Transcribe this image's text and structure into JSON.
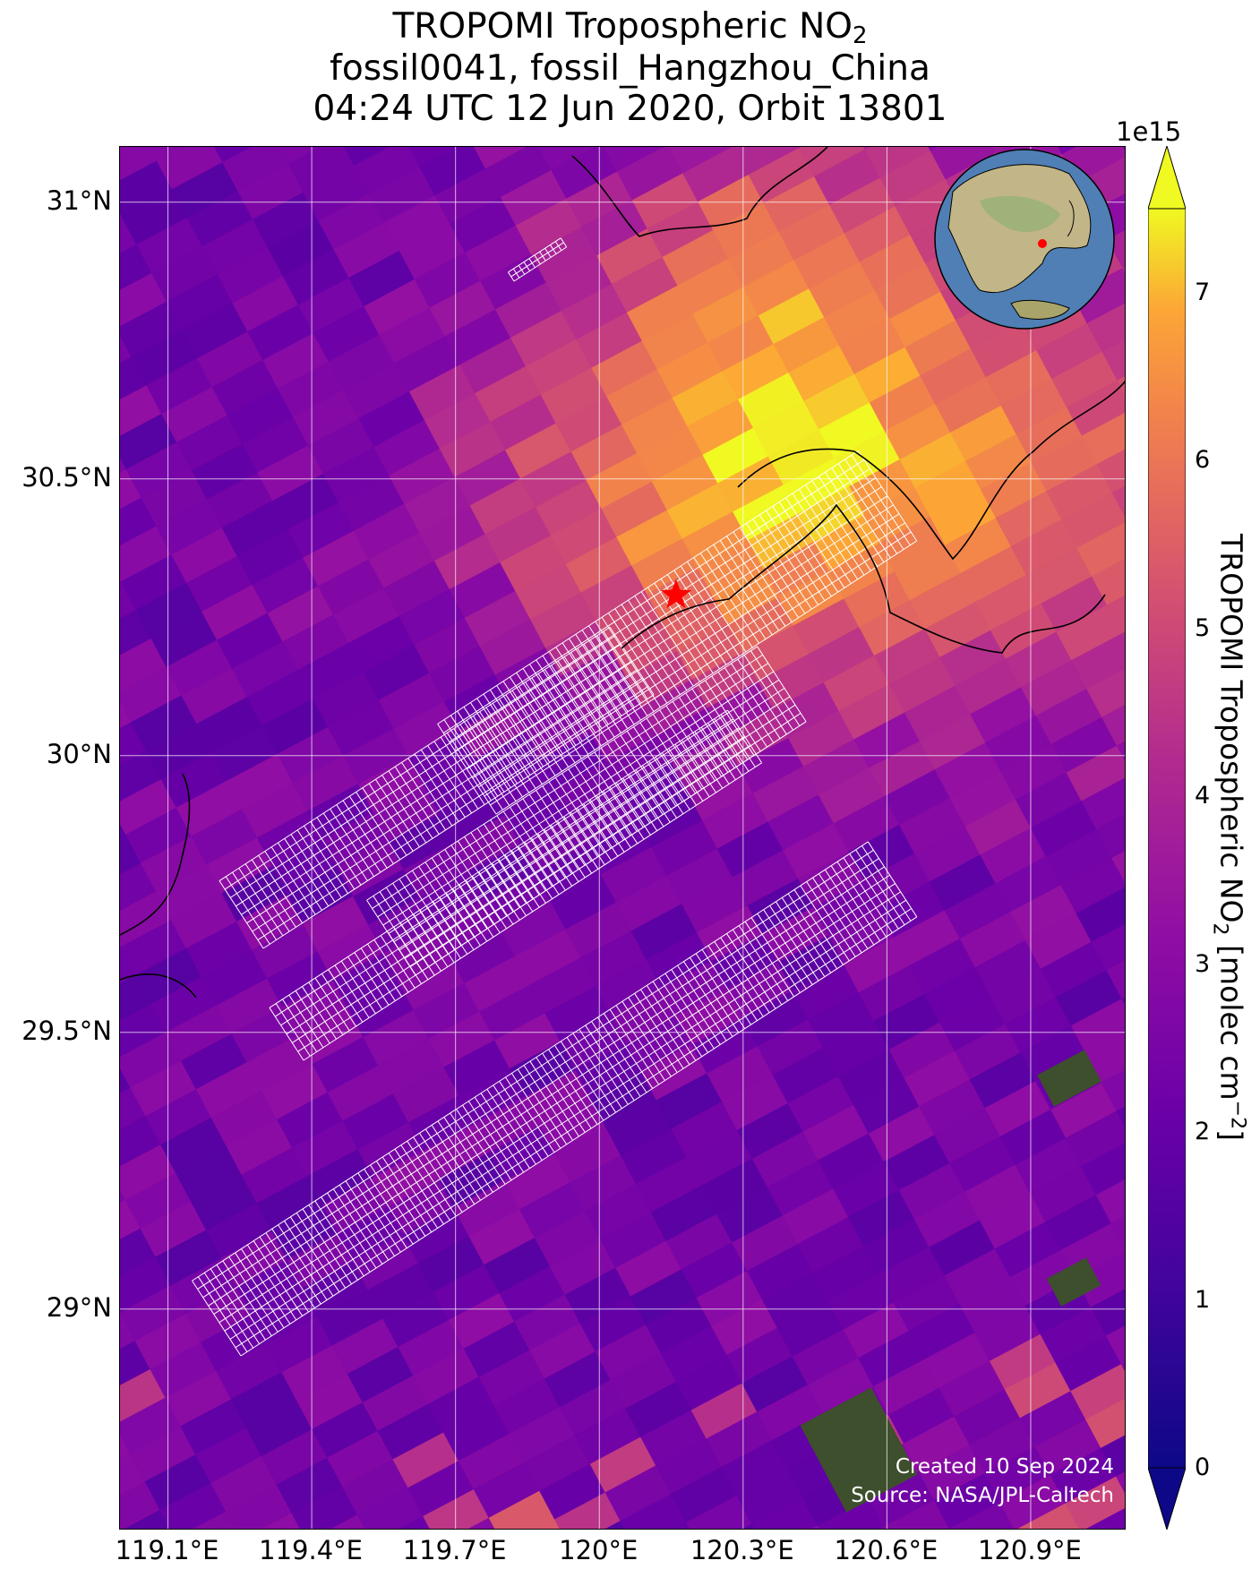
{
  "title": {
    "line1_text": "TROPOMI Tropospheric NO",
    "line1_sub": "2",
    "line2": "fossil0041, fossil_Hangzhou_China",
    "line3": "04:24 UTC 12 Jun 2020, Orbit 13801"
  },
  "map": {
    "lon_range": [
      119.0,
      121.1
    ],
    "lat_range": [
      28.6,
      31.1
    ],
    "gridlines": true,
    "lat_labels": [
      "31°N",
      "30.5°N",
      "30°N",
      "29.5°N",
      "29°N"
    ],
    "lat_values": [
      31.0,
      30.5,
      30.0,
      29.5,
      29.0
    ],
    "lon_labels": [
      "119.1°E",
      "119.4°E",
      "119.7°E",
      "120°E",
      "120.3°E",
      "120.6°E",
      "120.9°E"
    ],
    "lon_values": [
      119.1,
      119.4,
      119.7,
      120.0,
      120.3,
      120.6,
      120.9
    ],
    "site_marker": {
      "lon": 120.16,
      "lat": 30.29,
      "color": "#ff0000",
      "symbol": "star"
    },
    "inset": {
      "type": "globe",
      "marker_color": "#ff0000"
    }
  },
  "colorbar": {
    "colormap": "plasma",
    "range": [
      0,
      7.5
    ],
    "exponent_label": "1e15",
    "ticks": [
      "0",
      "1",
      "2",
      "3",
      "4",
      "5",
      "6",
      "7"
    ],
    "tick_values": [
      0,
      1,
      2,
      3,
      4,
      5,
      6,
      7
    ],
    "label_prefix": "TROPOMI Tropospheric NO",
    "label_sub": "2",
    "label_mid": " [molec cm",
    "label_sup": "−2",
    "label_suffix": "]"
  },
  "credits": {
    "created": "Created 10 Sep 2024",
    "source": "Source: NASA/JPL-Caltech"
  }
}
